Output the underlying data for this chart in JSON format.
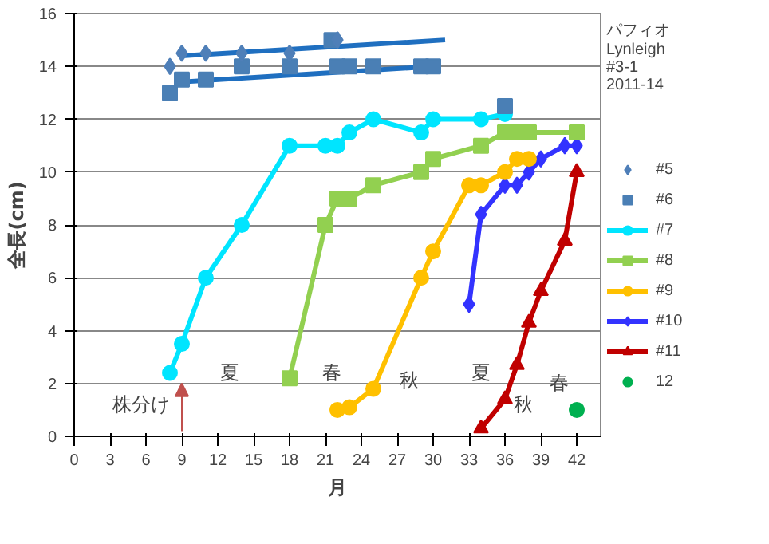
{
  "chart_data": {
    "type": "line",
    "title": "パフィオ\nLynleigh\n#3-1\n2011-14",
    "xlabel": "月",
    "ylabel": "全長(cm)",
    "xlim": [
      0,
      44
    ],
    "xticks": [
      0,
      3,
      6,
      9,
      12,
      15,
      18,
      21,
      24,
      27,
      30,
      33,
      36,
      39,
      42
    ],
    "ylim": [
      0,
      16
    ],
    "yticks": [
      0,
      2,
      4,
      6,
      8,
      10,
      12,
      14,
      16
    ],
    "grid": "y",
    "legend": "right",
    "series": [
      {
        "name": "#5",
        "type": "scatter",
        "marker": "diamond",
        "color": "#4f7fb8",
        "x": [
          8,
          9,
          11,
          14,
          18,
          22
        ],
        "values": [
          14,
          14.5,
          14.5,
          14.5,
          14.5,
          15
        ]
      },
      {
        "name": "#6",
        "type": "scatter",
        "marker": "square",
        "color": "#4a7fb5",
        "x": [
          8,
          9,
          11,
          14,
          18,
          21.5,
          22,
          23,
          25,
          29,
          30,
          36
        ],
        "values": [
          13,
          13.5,
          13.5,
          14,
          14,
          15,
          14,
          14,
          14,
          14,
          14,
          12.5
        ]
      },
      {
        "marker": "none",
        "color": "#1f6fc0",
        "x": [
          9,
          31
        ],
        "values": [
          14.4,
          15
        ]
      },
      {
        "marker": "none",
        "color": "#1f6fc0",
        "x": [
          8.5,
          30
        ],
        "values": [
          13.4,
          14
        ]
      },
      {
        "name": "#7",
        "marker": "circle",
        "color": "#00e5ff",
        "x": [
          8,
          9,
          11,
          14,
          18,
          21,
          22,
          23,
          25,
          29,
          30,
          34,
          36
        ],
        "values": [
          2.4,
          3.5,
          6,
          8,
          11,
          11,
          11,
          11.5,
          12,
          11.5,
          12,
          12,
          12.2
        ]
      },
      {
        "name": "#8",
        "marker": "square",
        "color": "#92d050",
        "x": [
          18,
          21,
          22,
          23,
          25,
          29,
          30,
          34,
          36,
          37,
          38,
          42
        ],
        "values": [
          2.2,
          8,
          9,
          9,
          9.5,
          10,
          10.5,
          11,
          11.5,
          11.5,
          11.5,
          11.5
        ]
      },
      {
        "name": "#9",
        "marker": "circle",
        "color": "#ffc000",
        "x": [
          22,
          23,
          25,
          29,
          30,
          33,
          34,
          36,
          37,
          38
        ],
        "values": [
          1,
          1.1,
          1.8,
          6,
          7,
          9.5,
          9.5,
          10,
          10.5,
          10.5
        ]
      },
      {
        "name": "#10",
        "marker": "diamond",
        "color": "#3333ff",
        "x": [
          33,
          34,
          36,
          37,
          38,
          39,
          41,
          42
        ],
        "values": [
          5,
          8.4,
          9.5,
          9.5,
          10,
          10.5,
          11,
          11
        ]
      },
      {
        "name": "#11",
        "marker": "triangle",
        "color": "#c00000",
        "x": [
          34,
          36,
          37,
          38,
          39,
          41,
          42
        ],
        "values": [
          0.3,
          1.4,
          2.7,
          4.3,
          5.5,
          7.4,
          10
        ]
      },
      {
        "name": "12",
        "type": "scatter",
        "marker": "circle",
        "color": "#00b050",
        "x": [
          42
        ],
        "values": [
          1
        ]
      }
    ],
    "annotations": [
      "株分け",
      "夏",
      "春",
      "秋",
      "夏",
      "秋",
      "春"
    ]
  }
}
